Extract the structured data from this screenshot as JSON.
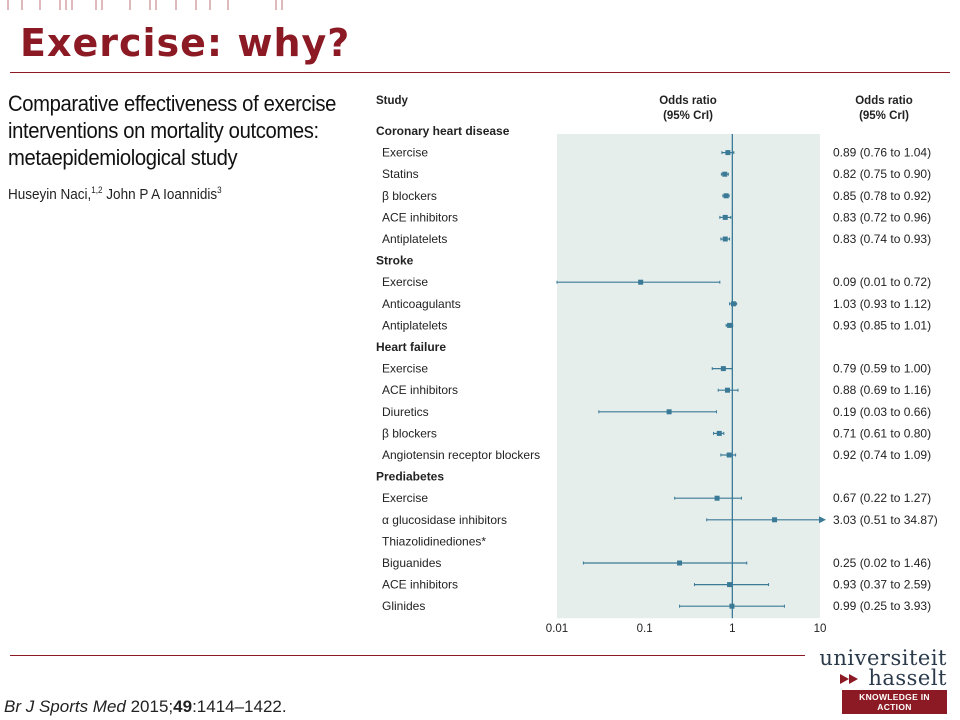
{
  "slide": {
    "title": "Exercise: why?"
  },
  "paper": {
    "title": "Comparative effectiveness of exercise interventions on mortality outcomes: metaepidemiological study",
    "authors": "Huseyin Naci,",
    "authors_sup1": "1,2",
    "authors_mid": " John P A Ioannidis",
    "authors_sup2": "3"
  },
  "citation": {
    "journal": "Br J Sports Med",
    "year": " 2015;",
    "volume": "49",
    "pages": ":1414–1422."
  },
  "logo": {
    "line1": "universiteit",
    "line2": "hasselt",
    "tagline": "KNOWLEDGE IN ACTION"
  },
  "colors": {
    "accent": "#8b1a24",
    "marker": "#3a7a96",
    "band": "#e6eeec"
  },
  "chart_data": {
    "type": "forest",
    "header": {
      "study": "Study",
      "or_center_1": "Odds ratio",
      "or_center_2": "(95% CrI)",
      "or_right_1": "Odds ratio",
      "or_right_2": "(95% CrI)"
    },
    "x_scale": "log",
    "xlim": [
      0.01,
      10
    ],
    "x_ticks": [
      "0.01",
      "0.1",
      "1",
      "10"
    ],
    "reference_line": 1,
    "rows": [
      {
        "type": "group",
        "label": "Coronary heart disease"
      },
      {
        "type": "item",
        "label": "Exercise",
        "or": 0.89,
        "lo": 0.76,
        "hi": 1.04,
        "text": "0.89 (0.76 to 1.04)"
      },
      {
        "type": "item",
        "label": "Statins",
        "or": 0.82,
        "lo": 0.75,
        "hi": 0.9,
        "text": "0.82 (0.75 to 0.90)"
      },
      {
        "type": "item",
        "label": "β blockers",
        "or": 0.85,
        "lo": 0.78,
        "hi": 0.92,
        "text": "0.85 (0.78 to 0.92)"
      },
      {
        "type": "item",
        "label": "ACE inhibitors",
        "or": 0.83,
        "lo": 0.72,
        "hi": 0.96,
        "text": "0.83 (0.72 to 0.96)"
      },
      {
        "type": "item",
        "label": "Antiplatelets",
        "or": 0.83,
        "lo": 0.74,
        "hi": 0.93,
        "text": "0.83 (0.74 to 0.93)"
      },
      {
        "type": "group",
        "label": "Stroke"
      },
      {
        "type": "item",
        "label": "Exercise",
        "or": 0.09,
        "lo": 0.01,
        "hi": 0.72,
        "text": "0.09 (0.01 to 0.72)"
      },
      {
        "type": "item",
        "label": "Anticoagulants",
        "or": 1.03,
        "lo": 0.93,
        "hi": 1.12,
        "text": "1.03 (0.93 to 1.12)"
      },
      {
        "type": "item",
        "label": "Antiplatelets",
        "or": 0.93,
        "lo": 0.85,
        "hi": 1.01,
        "text": "0.93 (0.85 to 1.01)"
      },
      {
        "type": "group",
        "label": "Heart failure"
      },
      {
        "type": "item",
        "label": "Exercise",
        "or": 0.79,
        "lo": 0.59,
        "hi": 1.0,
        "text": "0.79 (0.59 to 1.00)"
      },
      {
        "type": "item",
        "label": "ACE inhibitors",
        "or": 0.88,
        "lo": 0.69,
        "hi": 1.16,
        "text": "0.88 (0.69 to 1.16)"
      },
      {
        "type": "item",
        "label": "Diuretics",
        "or": 0.19,
        "lo": 0.03,
        "hi": 0.66,
        "text": "0.19 (0.03 to 0.66)"
      },
      {
        "type": "item",
        "label": "β blockers",
        "or": 0.71,
        "lo": 0.61,
        "hi": 0.8,
        "text": "0.71 (0.61 to 0.80)"
      },
      {
        "type": "item",
        "label": "Angiotensin receptor blockers",
        "or": 0.92,
        "lo": 0.74,
        "hi": 1.09,
        "text": "0.92 (0.74 to 1.09)"
      },
      {
        "type": "group",
        "label": "Prediabetes"
      },
      {
        "type": "item",
        "label": "Exercise",
        "or": 0.67,
        "lo": 0.22,
        "hi": 1.27,
        "text": "0.67 (0.22 to 1.27)"
      },
      {
        "type": "item",
        "label": "α glucosidase inhibitors",
        "or": 3.03,
        "lo": 0.51,
        "hi": 34.87,
        "text": "3.03 (0.51 to 34.87)"
      },
      {
        "type": "item",
        "label": "Thiazolidinediones*",
        "or": null,
        "lo": null,
        "hi": null,
        "text": ""
      },
      {
        "type": "item",
        "label": "Biguanides",
        "or": 0.25,
        "lo": 0.02,
        "hi": 1.46,
        "text": "0.25 (0.02 to 1.46)"
      },
      {
        "type": "item",
        "label": "ACE inhibitors",
        "or": 0.93,
        "lo": 0.37,
        "hi": 2.59,
        "text": "0.93 (0.37 to 2.59)"
      },
      {
        "type": "item",
        "label": "Glinides",
        "or": 0.99,
        "lo": 0.25,
        "hi": 3.93,
        "text": "0.99 (0.25 to 3.93)"
      }
    ]
  }
}
